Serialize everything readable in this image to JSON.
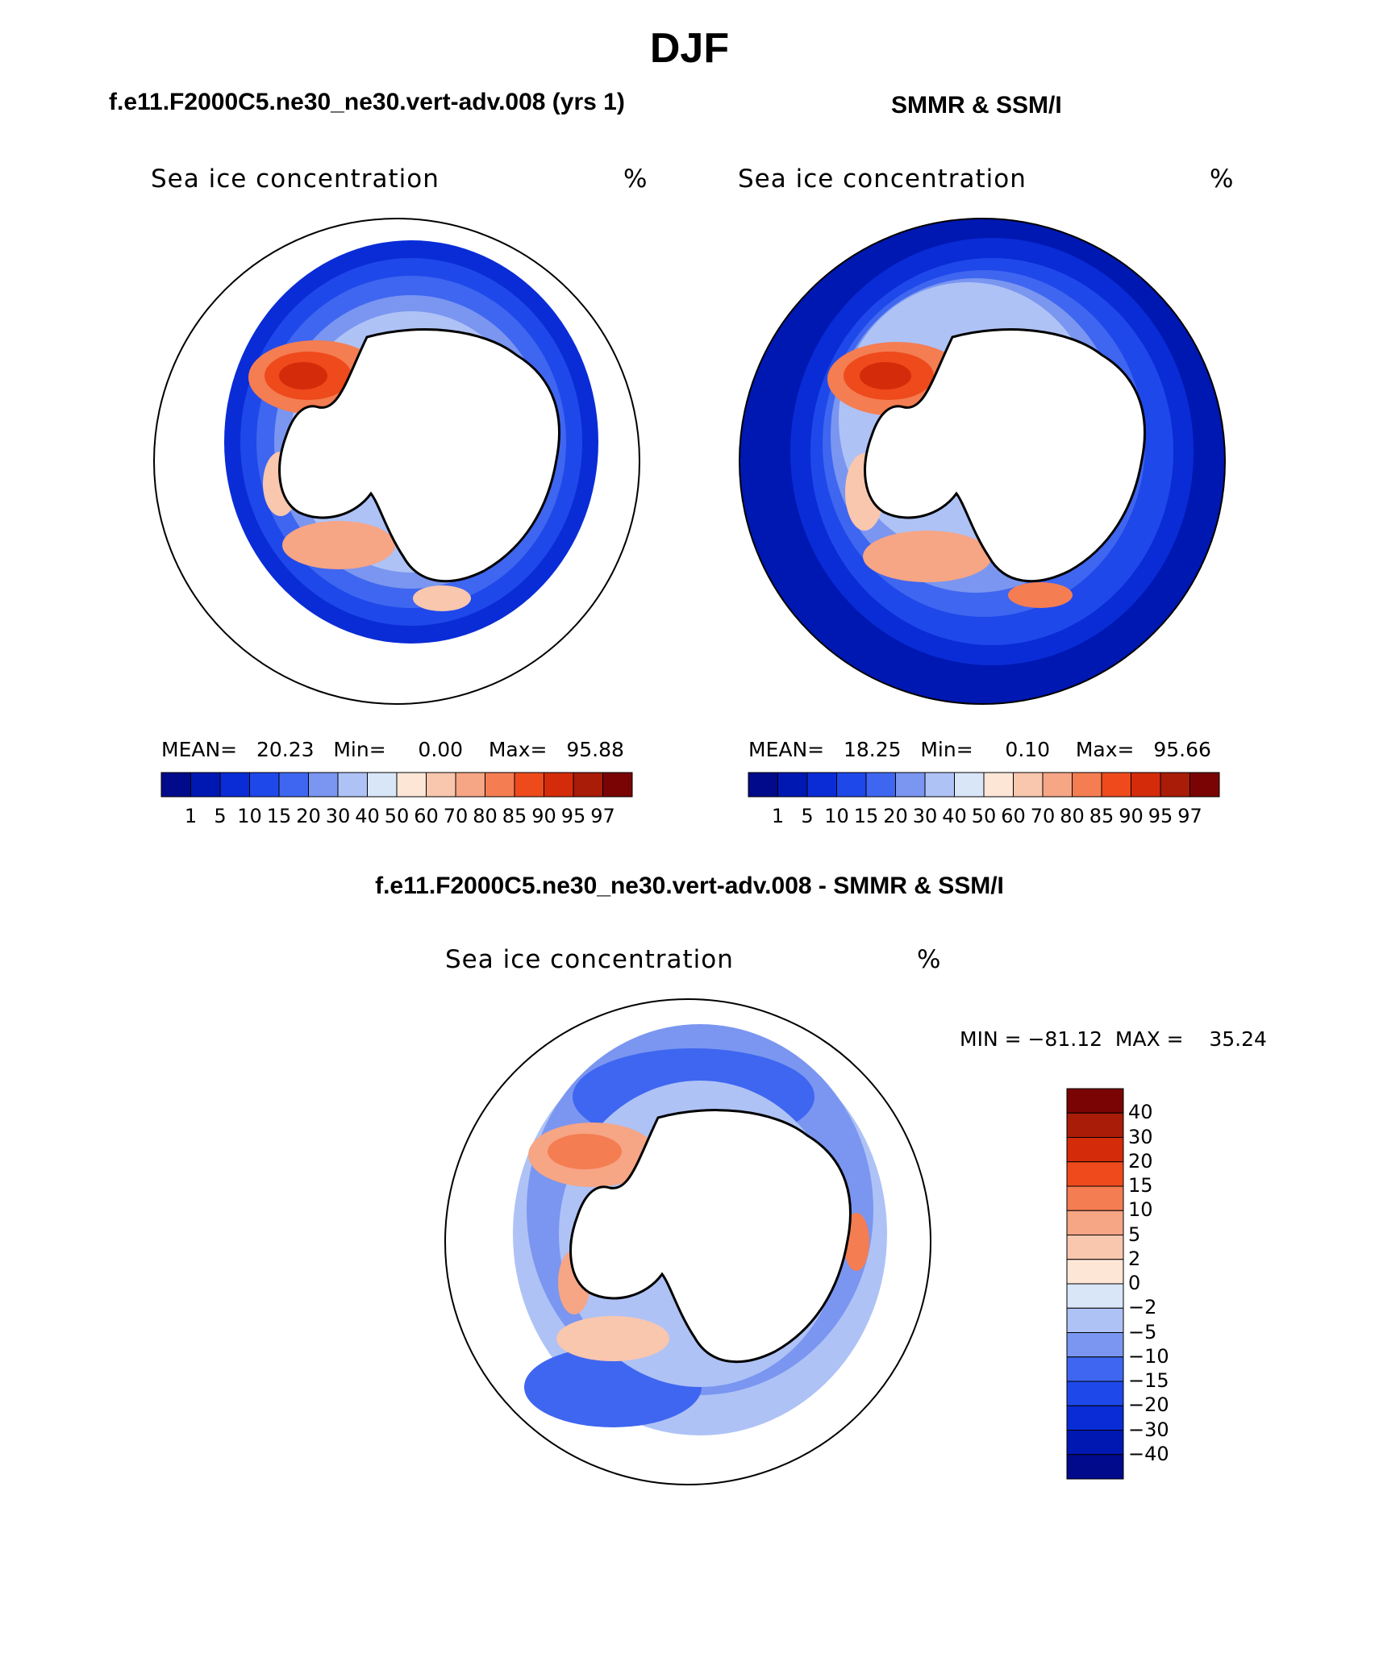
{
  "figure": {
    "title": "DJF"
  },
  "panels": [
    {
      "case_title": "f.e11.F2000C5.ne30_ne30.vert-adv.008 (yrs 1)",
      "label_left": "Sea ice concentration",
      "label_right": "%",
      "stats": "MEAN=   20.23   Min=     0.00    Max=   95.88"
    },
    {
      "case_title": "SMMR & SSM/I",
      "label_left": "Sea ice concentration",
      "label_right": "%",
      "stats": "MEAN=   18.25   Min=     0.10    Max=   95.66"
    }
  ],
  "diff_panel": {
    "case_title": "f.e11.F2000C5.ne30_ne30.vert-adv.008 - SMMR & SSM/I",
    "label_left": "Sea ice concentration",
    "label_right": "%",
    "minmax": "MIN = −81.12  MAX =    35.24"
  },
  "colorbars": {
    "abs_levels": [
      "1",
      "5",
      "10",
      "15",
      "20",
      "30",
      "40",
      "50",
      "60",
      "70",
      "80",
      "85",
      "90",
      "95",
      "97"
    ],
    "abs_colors": [
      "#000a8a",
      "#0018b2",
      "#0a2cd6",
      "#1f48ea",
      "#3f66f0",
      "#7a96f0",
      "#aec2f6",
      "#d8e6f8",
      "#fde6d6",
      "#f9c6ae",
      "#f6a585",
      "#f47d52",
      "#ee4a1c",
      "#d42c0a",
      "#a81c08",
      "#7a0404"
    ],
    "diff_levels": [
      "40",
      "30",
      "20",
      "15",
      "10",
      "5",
      "2",
      "0",
      "−2",
      "−5",
      "−10",
      "−15",
      "−20",
      "−30",
      "−40"
    ],
    "diff_colors": [
      "#7a0404",
      "#a81c08",
      "#d42c0a",
      "#ee4a1c",
      "#f47d52",
      "#f6a585",
      "#f9c6ae",
      "#fde6d6",
      "#d8e6f8",
      "#aec2f6",
      "#7a96f0",
      "#3f66f0",
      "#1f48ea",
      "#0a2cd6",
      "#0018b2",
      "#000a8a"
    ]
  },
  "map_colors": {
    "land": "#ffffff",
    "coast": "#000000"
  }
}
